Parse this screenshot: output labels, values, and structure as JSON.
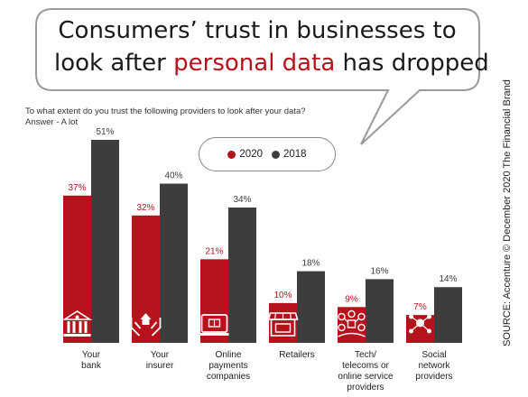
{
  "headline": {
    "line1": "Consumers’ trust in businesses to",
    "line2_prefix": "look after ",
    "line2_accent": "personal data",
    "line2_suffix": " has dropped"
  },
  "question": "To what extent do you trust the following providers to look after your data? Answer - A lot",
  "source": "SOURCE: Accenture © December 2020 The Financial Brand",
  "colors": {
    "accent": "#b5121b",
    "series_2020": "#b5121b",
    "series_2018": "#3d3d3d"
  },
  "chart_data": {
    "type": "bar",
    "categories": [
      [
        "Your",
        "bank"
      ],
      [
        "Your",
        "insurer"
      ],
      [
        "Online",
        "payments",
        "companies"
      ],
      [
        "Retailers"
      ],
      [
        "Tech/",
        "telecoms or",
        "online service",
        "providers"
      ],
      [
        "Social",
        "network",
        "providers"
      ]
    ],
    "icons": [
      "bank-icon",
      "insurer-icon",
      "online-payment-icon",
      "retail-store-icon",
      "network-icon",
      "social-network-icon"
    ],
    "series": [
      {
        "name": "2020",
        "values": [
          37,
          32,
          21,
          10,
          9,
          7
        ]
      },
      {
        "name": "2018",
        "values": [
          51,
          40,
          34,
          18,
          16,
          14
        ]
      }
    ],
    "value_suffix": "%",
    "ylim": [
      0,
      51
    ],
    "legend": "top-center"
  }
}
